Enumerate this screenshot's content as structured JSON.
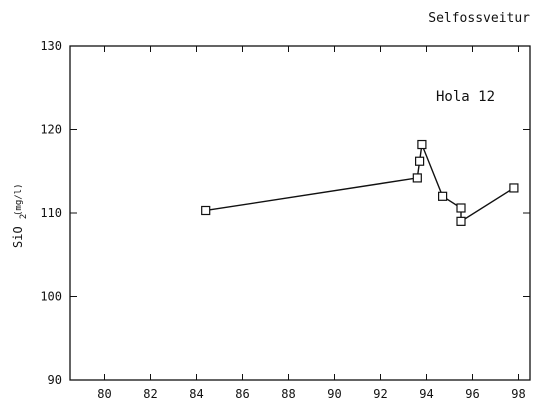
{
  "chart_data": {
    "type": "line",
    "title": "Selfossveitur",
    "annotation": "Hola 12",
    "ylabel": {
      "main": "SiO",
      "subscript": "2",
      "unit": "(mg/l)"
    },
    "xlabel": "",
    "xlim": [
      78.5,
      98.5
    ],
    "ylim": [
      90,
      130
    ],
    "xticks": [
      80,
      82,
      84,
      86,
      88,
      90,
      92,
      94,
      96,
      98
    ],
    "yticks": [
      90,
      100,
      110,
      120,
      130
    ],
    "series": [
      {
        "x": [
          84.4,
          93.6,
          93.7,
          93.8,
          94.7,
          95.5,
          95.5,
          97.8
        ],
        "y": [
          110.3,
          114.2,
          116.2,
          118.2,
          112.0,
          110.6,
          109.0,
          113.0
        ]
      }
    ],
    "marker": "square",
    "grid": false
  }
}
